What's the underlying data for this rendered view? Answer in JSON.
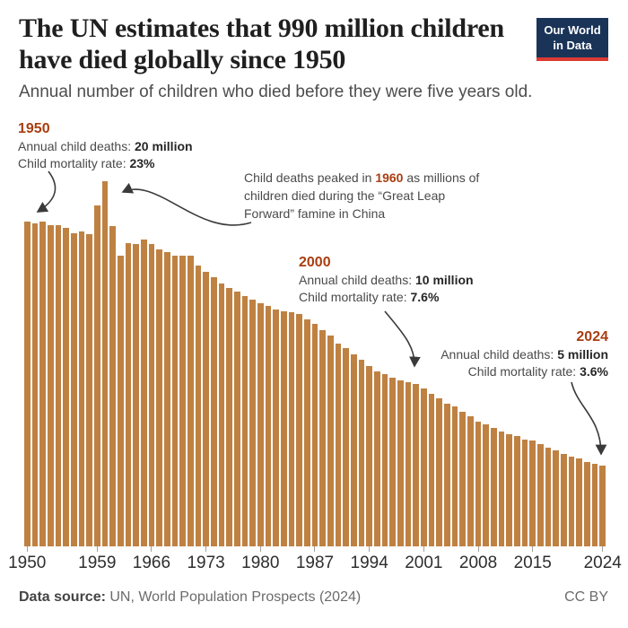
{
  "header": {
    "title": "The UN estimates that 990 million children have died globally since 1950",
    "subtitle": "Annual number of children who died before they were five years old.",
    "logo": {
      "line1": "Our World",
      "line2": "in Data"
    }
  },
  "annotations": {
    "y1950": {
      "year": "1950",
      "deaths_label": "Annual child deaths: ",
      "deaths_value": "20 million",
      "rate_label": "Child mortality rate: ",
      "rate_value": "23%"
    },
    "peak": {
      "pre": "Child deaths peaked in ",
      "year": "1960",
      "post": " as millions of children died during the “Great Leap Forward” famine in China"
    },
    "y2000": {
      "year": "2000",
      "deaths_label": "Annual child deaths: ",
      "deaths_value": "10 million",
      "rate_label": "Child mortality rate: ",
      "rate_value": "7.6%"
    },
    "y2024": {
      "year": "2024",
      "deaths_label": "Annual child deaths: ",
      "deaths_value": "5 million",
      "rate_label": "Child mortality rate: ",
      "rate_value": "3.6%"
    }
  },
  "chart_data": {
    "type": "bar",
    "title": "Annual number of children who died before they were five years old",
    "unit": "million deaths per year",
    "x": [
      1950,
      1951,
      1952,
      1953,
      1954,
      1955,
      1956,
      1957,
      1958,
      1959,
      1960,
      1961,
      1962,
      1963,
      1964,
      1965,
      1966,
      1967,
      1968,
      1969,
      1970,
      1971,
      1972,
      1973,
      1974,
      1975,
      1976,
      1977,
      1978,
      1979,
      1980,
      1981,
      1982,
      1983,
      1984,
      1985,
      1986,
      1987,
      1988,
      1989,
      1990,
      1991,
      1992,
      1993,
      1994,
      1995,
      1996,
      1997,
      1998,
      1999,
      2000,
      2001,
      2002,
      2003,
      2004,
      2005,
      2006,
      2007,
      2008,
      2009,
      2010,
      2011,
      2012,
      2013,
      2014,
      2015,
      2016,
      2017,
      2018,
      2019,
      2020,
      2021,
      2022,
      2023,
      2024
    ],
    "values": [
      20.0,
      19.9,
      20.0,
      19.8,
      19.8,
      19.6,
      19.3,
      19.4,
      19.2,
      21.0,
      22.5,
      19.7,
      17.9,
      18.7,
      18.6,
      18.9,
      18.6,
      18.3,
      18.1,
      17.9,
      17.9,
      17.9,
      17.3,
      16.9,
      16.6,
      16.2,
      15.9,
      15.7,
      15.4,
      15.2,
      15.0,
      14.8,
      14.6,
      14.5,
      14.4,
      14.3,
      14.0,
      13.7,
      13.3,
      13.0,
      12.5,
      12.2,
      11.8,
      11.5,
      11.1,
      10.8,
      10.6,
      10.4,
      10.2,
      10.1,
      10.0,
      9.7,
      9.4,
      9.1,
      8.8,
      8.6,
      8.3,
      8.0,
      7.7,
      7.5,
      7.3,
      7.1,
      6.9,
      6.8,
      6.6,
      6.5,
      6.3,
      6.1,
      5.9,
      5.7,
      5.5,
      5.4,
      5.2,
      5.1,
      5.0
    ],
    "xtick_labels": [
      1950,
      1959,
      1966,
      1973,
      1980,
      1987,
      1994,
      2001,
      2008,
      2015,
      2024
    ],
    "ylim": [
      0,
      23
    ],
    "grid": false,
    "legend": "none",
    "bar_color": "#bf8142",
    "accent_color": "#a93e10",
    "total_since_1950": "990 million"
  },
  "footer": {
    "source_label": "Data source:",
    "source_text": " UN, World Population Prospects (2024)",
    "license": "CC BY"
  }
}
